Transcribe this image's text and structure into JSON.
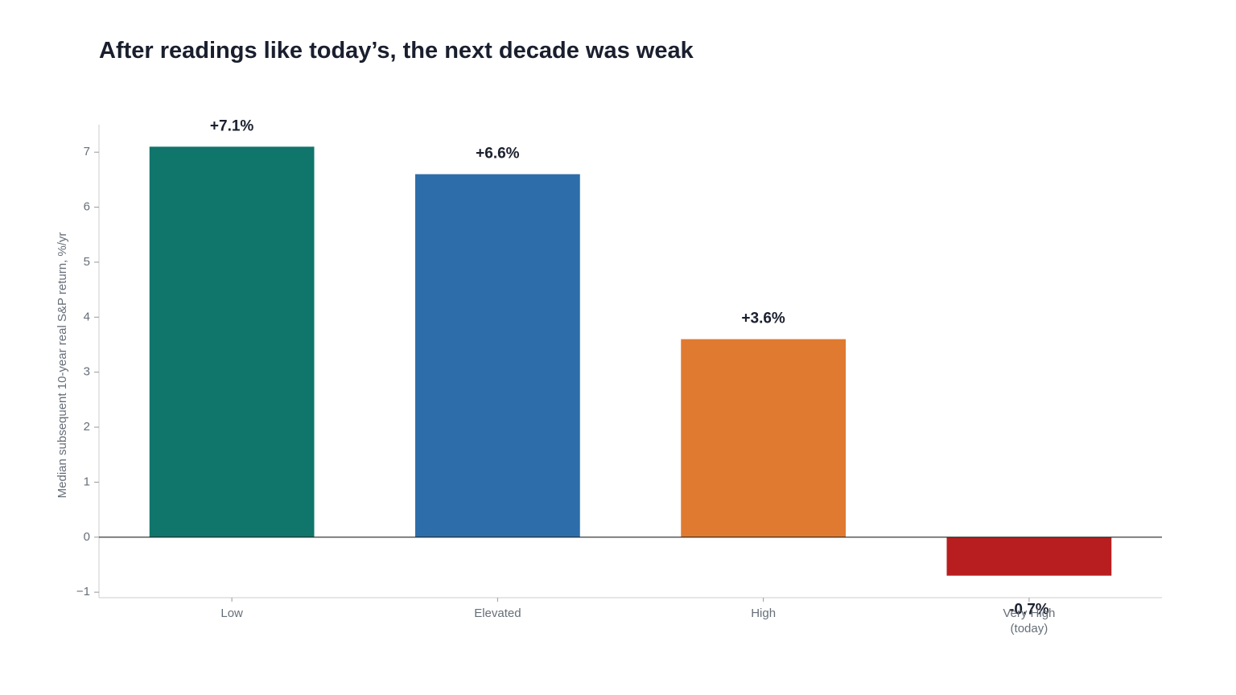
{
  "chart_data": {
    "type": "bar",
    "title": "After readings like today’s, the next decade was weak",
    "xlabel": "",
    "ylabel": "Median subsequent 10-year real S&P return, %/yr",
    "categories": [
      [
        "Low"
      ],
      [
        "Elevated"
      ],
      [
        "High"
      ],
      [
        "Very High",
        "(today)"
      ]
    ],
    "values": [
      7.1,
      6.6,
      3.6,
      -0.7
    ],
    "data_labels": [
      "+7.1%",
      "+6.6%",
      "+3.6%",
      "-0.7%"
    ],
    "colors": [
      "#10756b",
      "#2d6eaa",
      "#e07a30",
      "#b81e1f"
    ],
    "ylim": [
      -1.1,
      7.5
    ],
    "yticks": [
      -1,
      0,
      1,
      2,
      3,
      4,
      5,
      6,
      7
    ],
    "ytick_labels": [
      "−1",
      "0",
      "1",
      "2",
      "3",
      "4",
      "5",
      "6",
      "7"
    ],
    "grid": false,
    "legend": "none"
  }
}
